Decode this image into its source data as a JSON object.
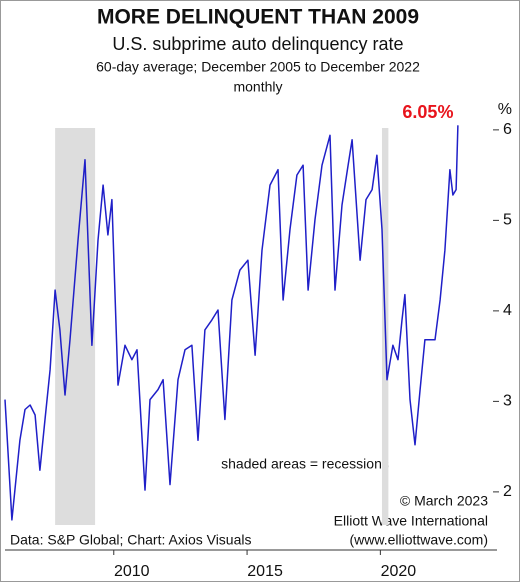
{
  "chart_data": {
    "type": "line",
    "title": "MORE DELINQUENT THAN 2009",
    "subtitle": "U.S. subprime auto delinquency rate",
    "notes": [
      "60-day average; December 2005 to December 2022",
      "monthly"
    ],
    "ylabel": "%",
    "legend_note": "shaded areas = recessions",
    "credits": [
      "© March 2023",
      "Elliott Wave International",
      "(www.elliottwave.com)"
    ],
    "source": "Data: S&P Global; Chart: Axios Visuals",
    "annotation": {
      "text": "6.05%",
      "color": "#e8141c"
    },
    "recessions": [
      [
        2007.8,
        2009.3
      ],
      [
        2020.06,
        2020.3
      ]
    ],
    "recession_color": "#dddddd",
    "xlim": [
      2005.92,
      2024.3
    ],
    "xticks": [
      2010,
      2015,
      2020
    ],
    "ylim": [
      1.38,
      6.33
    ],
    "yticks": [
      2,
      3,
      4,
      5,
      6
    ],
    "series": [
      {
        "color": "#1f1fc8",
        "x": [
          2005.92,
          2006.18,
          2006.48,
          2006.67,
          2006.86,
          2007.05,
          2007.23,
          2007.42,
          2007.61,
          2007.8,
          2007.98,
          2008.17,
          2008.36,
          2008.66,
          2008.92,
          2009.18,
          2009.41,
          2009.6,
          2009.78,
          2009.93,
          2010.16,
          2010.42,
          2010.68,
          2010.87,
          2011.17,
          2011.36,
          2011.66,
          2011.85,
          2012.11,
          2012.41,
          2012.67,
          2012.93,
          2013.16,
          2013.42,
          2013.68,
          2013.91,
          2014.17,
          2014.43,
          2014.73,
          2015.03,
          2015.3,
          2015.56,
          2015.86,
          2016.16,
          2016.35,
          2016.61,
          2016.87,
          2017.1,
          2017.29,
          2017.55,
          2017.81,
          2018.11,
          2018.3,
          2018.56,
          2018.79,
          2018.94,
          2019.24,
          2019.46,
          2019.69,
          2019.87,
          2020.06,
          2020.25,
          2020.47,
          2020.66,
          2020.81,
          2020.92,
          2021.11,
          2021.3,
          2021.49,
          2021.67,
          2022.05,
          2022.24,
          2022.42,
          2022.61,
          2022.72,
          2022.84,
          2022.91
        ],
        "values": [
          3.02,
          1.69,
          2.57,
          2.91,
          2.96,
          2.85,
          2.24,
          2.8,
          3.35,
          4.23,
          3.79,
          3.07,
          3.68,
          4.78,
          5.67,
          3.62,
          4.78,
          5.39,
          4.84,
          5.23,
          3.18,
          3.62,
          3.46,
          3.57,
          2.02,
          3.02,
          3.13,
          3.24,
          2.08,
          3.24,
          3.57,
          3.62,
          2.57,
          3.79,
          3.9,
          4.01,
          2.8,
          4.12,
          4.45,
          4.56,
          3.51,
          4.67,
          5.39,
          5.56,
          4.12,
          4.9,
          5.5,
          5.61,
          4.23,
          5.01,
          5.61,
          5.94,
          4.23,
          5.17,
          5.61,
          5.89,
          4.56,
          5.23,
          5.34,
          5.72,
          4.9,
          3.24,
          3.62,
          3.46,
          3.9,
          4.18,
          3.02,
          2.52,
          3.13,
          3.68,
          3.68,
          4.12,
          4.67,
          5.56,
          5.28,
          5.34,
          6.05
        ]
      }
    ]
  }
}
